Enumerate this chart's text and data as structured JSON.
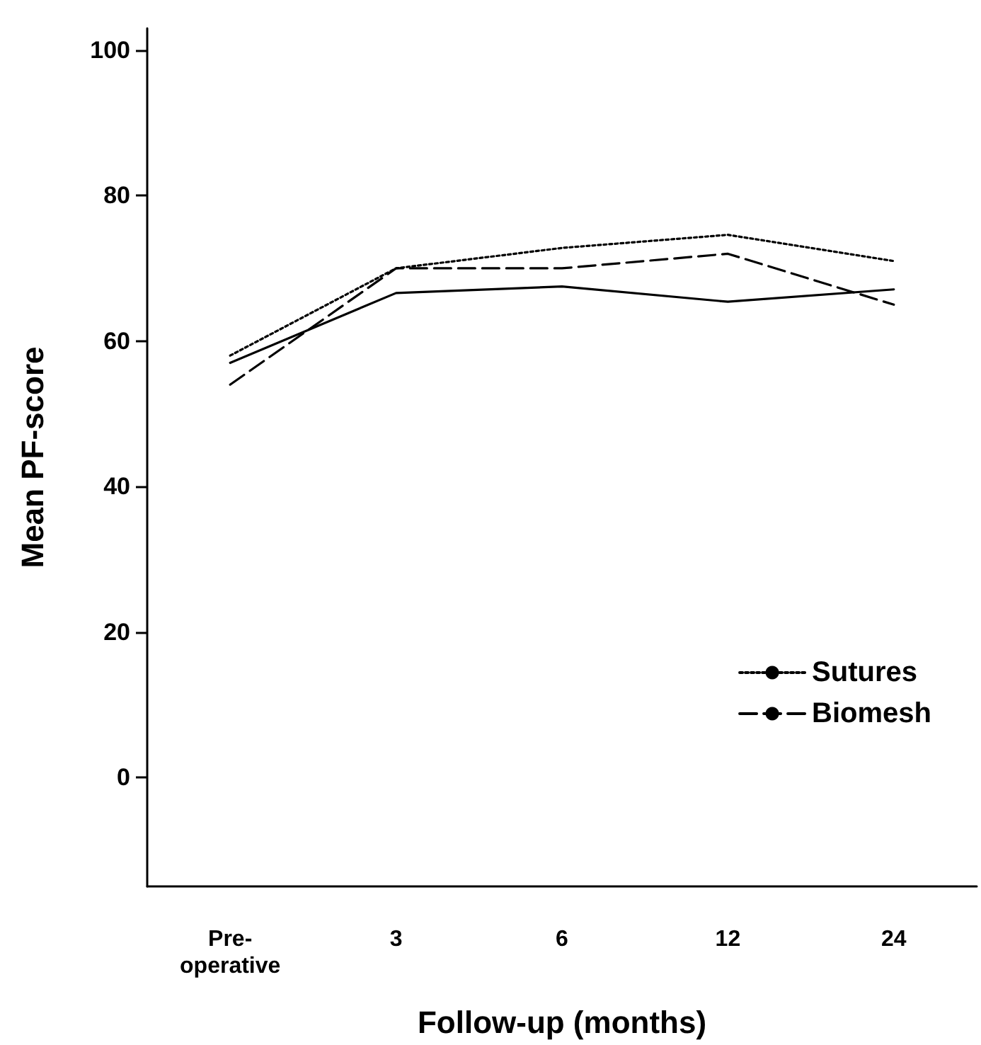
{
  "chart_data": {
    "type": "line",
    "xlabel": "Follow-up (months)",
    "ylabel": "Mean PF-score",
    "categories": [
      "Pre-\noperative",
      "3",
      "6",
      "12",
      "24"
    ],
    "series": [
      {
        "name": "Sutures",
        "color": "#000000",
        "line_style": "dotted",
        "values": [
          58,
          70,
          72.8,
          74.6,
          71
        ]
      },
      {
        "name": "Biomesh",
        "color": "#000000",
        "line_style": "dashed",
        "values": [
          54,
          70,
          70,
          72,
          65
        ]
      },
      {
        "color": "#000000",
        "line_style": "solid",
        "values": [
          57,
          66.6,
          67.5,
          65.4,
          67.1
        ]
      }
    ],
    "ylim": [
      -15,
      103
    ],
    "yticks": [
      0,
      20,
      40,
      60,
      80,
      100
    ],
    "grid": false,
    "legend": "right",
    "marker": "none"
  }
}
